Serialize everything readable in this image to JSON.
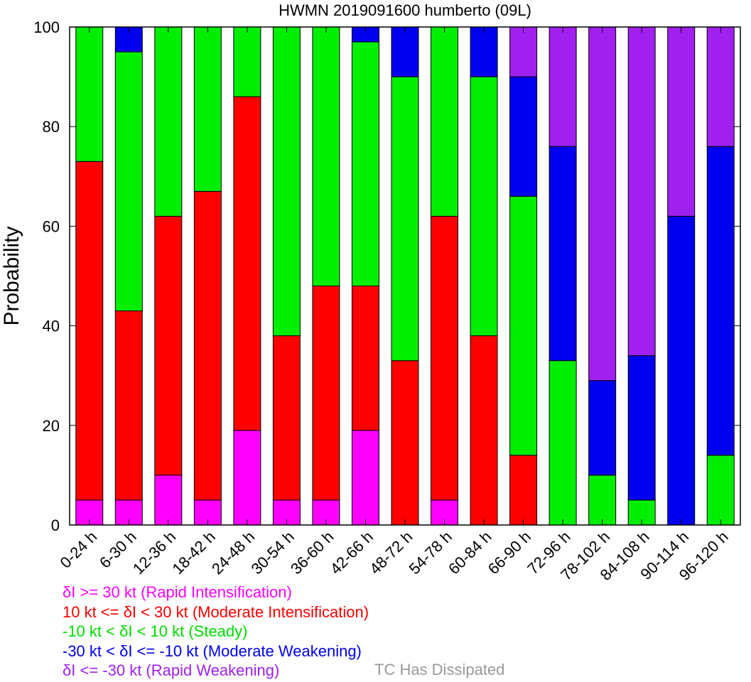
{
  "chart_data": {
    "type": "bar",
    "stacked": true,
    "title": "HWMN 2019091600 humberto (09L)",
    "xlabel": "",
    "ylabel": "Probability",
    "ylim": [
      0,
      100
    ],
    "yticks": [
      0,
      20,
      40,
      60,
      80,
      100
    ],
    "grid": false,
    "categories": [
      "0-24 h",
      "6-30 h",
      "12-36 h",
      "18-42 h",
      "24-48 h",
      "30-54 h",
      "36-60 h",
      "42-66 h",
      "48-72 h",
      "54-78 h",
      "60-84 h",
      "66-90 h",
      "72-96 h",
      "78-102 h",
      "84-108 h",
      "90-114 h",
      "96-120 h"
    ],
    "series": [
      {
        "key": "ri",
        "color": "#ff00ff",
        "values": [
          5,
          5,
          10,
          5,
          19,
          5,
          5,
          19,
          0,
          5,
          0,
          0,
          0,
          0,
          0,
          0,
          0
        ]
      },
      {
        "key": "mi",
        "color": "#ff0000",
        "values": [
          68,
          38,
          52,
          62,
          67,
          33,
          43,
          29,
          33,
          57,
          38,
          14,
          0,
          0,
          0,
          0,
          0
        ]
      },
      {
        "key": "st",
        "color": "#00ee00",
        "values": [
          27,
          52,
          38,
          33,
          14,
          62,
          52,
          49,
          57,
          38,
          52,
          52,
          33,
          10,
          5,
          0,
          14
        ]
      },
      {
        "key": "mw",
        "color": "#0000ee",
        "values": [
          0,
          5,
          0,
          0,
          0,
          0,
          0,
          3,
          10,
          0,
          10,
          24,
          43,
          19,
          29,
          62,
          62
        ]
      },
      {
        "key": "rw",
        "color": "#a020f0",
        "values": [
          0,
          0,
          0,
          0,
          0,
          0,
          0,
          0,
          0,
          0,
          0,
          10,
          24,
          71,
          66,
          38,
          24
        ]
      }
    ]
  },
  "legend": {
    "ri": {
      "text": "δI >= 30 kt (Rapid Intensification)",
      "color": "#ff00ff"
    },
    "mi": {
      "text": "10 kt <= δI < 30 kt (Moderate Intensification)",
      "color": "#ff0000"
    },
    "st": {
      "text": "-10 kt < δI < 10 kt (Steady)",
      "color": "#00dd00"
    },
    "mw": {
      "text": "-30 kt < δI <= -10 kt (Moderate Weakening)",
      "color": "#0000ee"
    },
    "rw": {
      "text": "δI <= -30 kt (Rapid Weakening)",
      "color": "#a020f0"
    },
    "dissipated": {
      "text": "TC Has Dissipated",
      "color": "#999999"
    }
  }
}
